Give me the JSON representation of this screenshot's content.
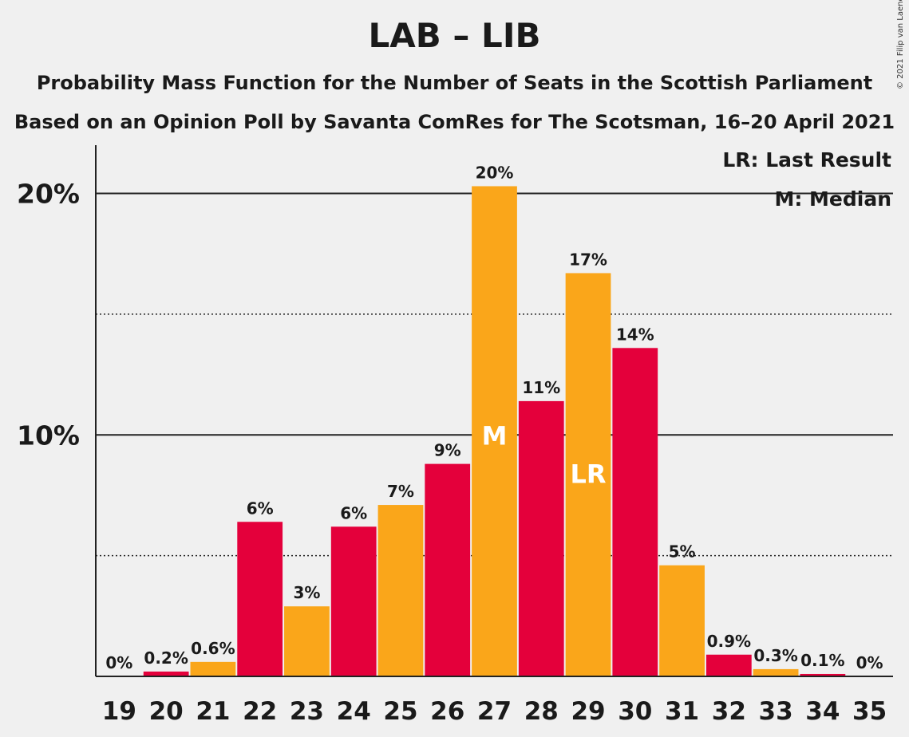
{
  "title": "LAB – LIB",
  "subtitle1": "Probability Mass Function for the Number of Seats in the Scottish Parliament",
  "subtitle2": "Based on an Opinion Poll by Savanta ComRes for The Scotsman, 16–20 April 2021",
  "copyright": "© 2021 Filip van Laenen",
  "colors": {
    "red": "#e4003b",
    "orange": "#faa61a",
    "background": "#f0f0f0"
  },
  "legend": {
    "last_result": "LR: Last Result",
    "median": "M: Median"
  },
  "chart_data": {
    "type": "bar",
    "categories": [
      "19",
      "20",
      "21",
      "22",
      "23",
      "24",
      "25",
      "26",
      "27",
      "28",
      "29",
      "30",
      "31",
      "32",
      "33",
      "34",
      "35"
    ],
    "values": [
      0,
      0.2,
      0.6,
      6.4,
      2.9,
      6.2,
      7.1,
      8.8,
      20.3,
      11.4,
      16.7,
      13.6,
      4.6,
      0.9,
      0.3,
      0.1,
      0
    ],
    "data_labels": [
      "0%",
      "0.2%",
      "0.6%",
      "6%",
      "3%",
      "6%",
      "7%",
      "9%",
      "20%",
      "11%",
      "17%",
      "14%",
      "5%",
      "0.9%",
      "0.3%",
      "0.1%",
      "0%"
    ],
    "bar_colors": [
      "orange",
      "red",
      "orange",
      "red",
      "orange",
      "red",
      "orange",
      "red",
      "orange",
      "red",
      "orange",
      "red",
      "orange",
      "red",
      "orange",
      "red",
      "orange"
    ],
    "ylim": [
      0,
      22
    ],
    "yticks": [
      {
        "value": 10,
        "label": "10%"
      },
      {
        "value": 20,
        "label": "20%"
      }
    ],
    "dotted_gridlines": [
      5,
      15
    ],
    "median": {
      "category": "27",
      "label": "M"
    },
    "last_result": {
      "category": "29",
      "label": "LR"
    },
    "xlabel": "",
    "ylabel": "",
    "legend_position": "top-right"
  }
}
